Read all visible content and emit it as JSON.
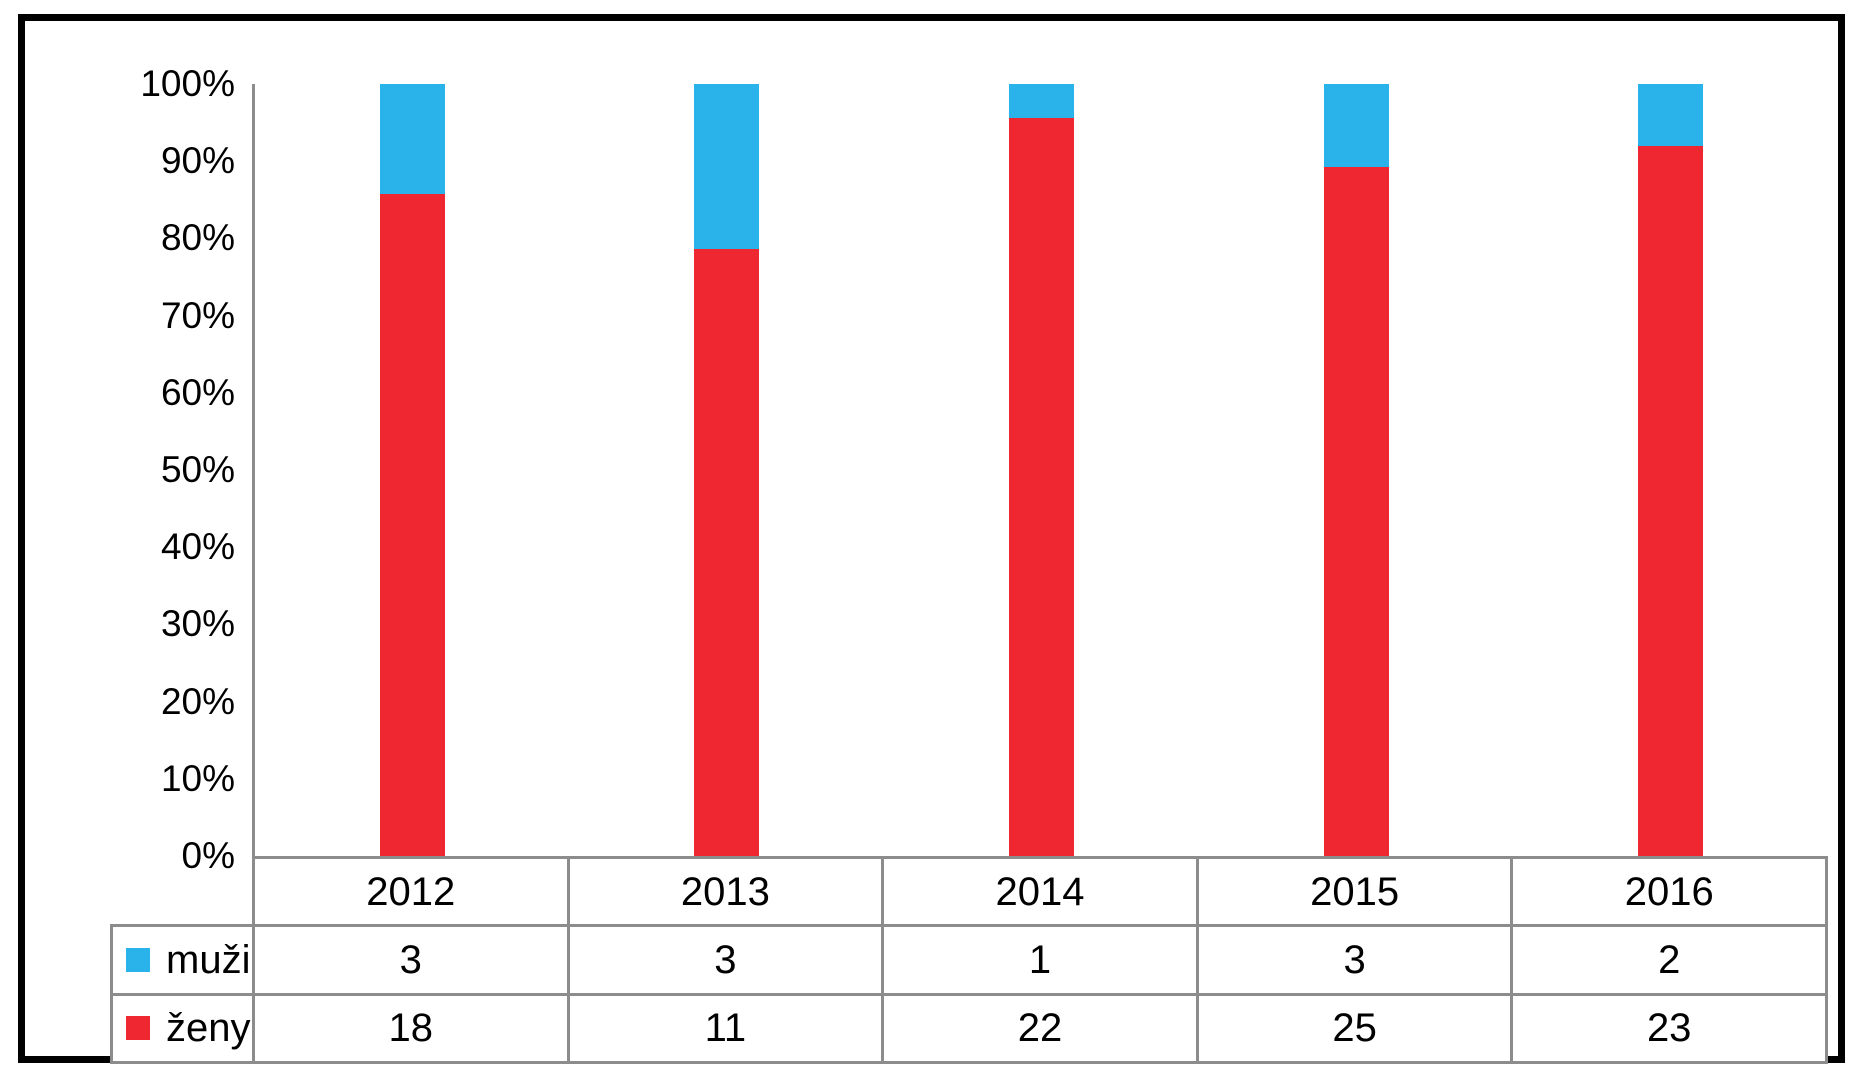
{
  "chart_data": {
    "type": "bar",
    "subtype": "stacked-100-percent-column",
    "title": "",
    "xlabel": "",
    "ylabel": "",
    "categories": [
      2012,
      2013,
      2014,
      2015,
      2016
    ],
    "series": [
      {
        "name": "muži",
        "values": [
          3,
          3,
          1,
          3,
          2
        ],
        "color": "#29B3EA"
      },
      {
        "name": "ženy",
        "values": [
          18,
          11,
          22,
          25,
          23
        ],
        "color": "#EE2731"
      }
    ],
    "y_ticks": [
      "0%",
      "10%",
      "20%",
      "30%",
      "40%",
      "50%",
      "60%",
      "70%",
      "80%",
      "90%",
      "100%"
    ],
    "ylim": [
      0,
      100
    ],
    "grid": "off",
    "legend_position": "table-left",
    "data_table_shown": true
  },
  "colors": {
    "muzi_blue": "#29B3EA",
    "zeny_red": "#EE2731",
    "table_line_gray": "#8C8C8C",
    "figure_border_black": "#000000",
    "background": "#FFFFFF"
  }
}
